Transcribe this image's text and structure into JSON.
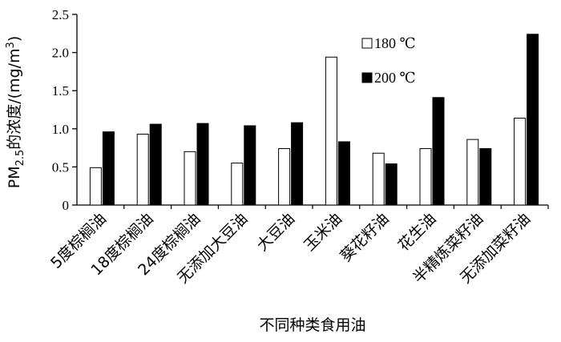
{
  "chart_data": {
    "type": "bar",
    "categories": [
      "5度棕榈油",
      "18度棕榈油",
      "24度棕榈油",
      "无添加大豆油",
      "大豆油",
      "玉米油",
      "葵花籽油",
      "花生油",
      "半精炼菜籽油",
      "无添加菜籽油"
    ],
    "series": [
      {
        "name": "180 ℃",
        "values": [
          0.49,
          0.93,
          0.7,
          0.55,
          0.74,
          1.94,
          0.68,
          0.74,
          0.86,
          1.14
        ],
        "color": "#ffffff"
      },
      {
        "name": "200 ℃",
        "values": [
          0.96,
          1.06,
          1.07,
          1.04,
          1.08,
          0.83,
          0.54,
          1.41,
          0.74,
          2.24
        ],
        "color": "#000000"
      }
    ],
    "xlabel": "不同种类食用油",
    "ylabel": {
      "prefix": "PM",
      "sub": "2.5",
      "mid": "的浓度/(mg/m",
      "sup": "3",
      "suffix": ")"
    },
    "ylim": [
      0,
      2.5
    ],
    "yticks": [
      "0",
      "0.5",
      "1.0",
      "1.5",
      "2.0",
      "2.5"
    ],
    "legend_position": "top-right",
    "grid": false
  }
}
